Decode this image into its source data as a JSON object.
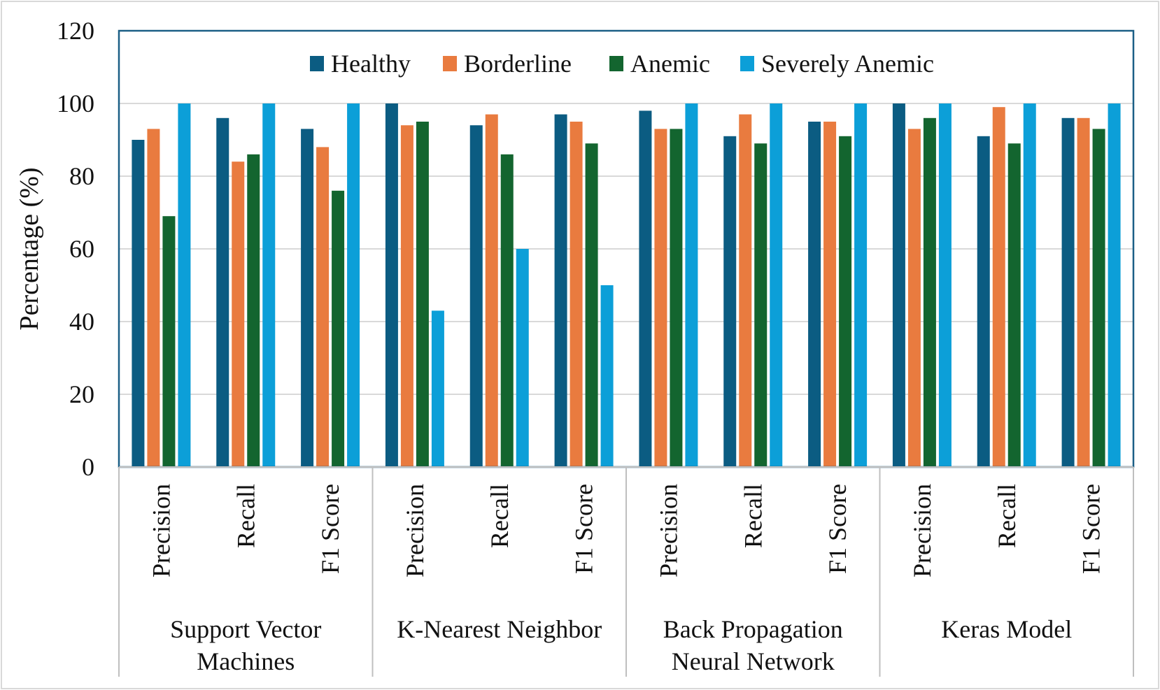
{
  "chart_data": {
    "type": "bar",
    "title": "",
    "xlabel": "",
    "ylabel": "Percentage (%)",
    "ylim": [
      0,
      120
    ],
    "yticks": [
      "0",
      "20",
      "40",
      "60",
      "80",
      "100",
      "120"
    ],
    "grid": true,
    "legend_position": "top-center",
    "groups": [
      {
        "label_lines": [
          "Support Vector",
          "Machines"
        ],
        "categories": [
          "Precision",
          "Recall",
          "F1 Score"
        ]
      },
      {
        "label_lines": [
          "K-Nearest Neighbor"
        ],
        "categories": [
          "Precision",
          "Recall",
          "F1 Score"
        ]
      },
      {
        "label_lines": [
          "Back Propagation",
          "Neural Network"
        ],
        "categories": [
          "Precision",
          "Recall",
          "F1 Score"
        ]
      },
      {
        "label_lines": [
          "Keras Model"
        ],
        "categories": [
          "Precision",
          "Recall",
          "F1 Score"
        ]
      }
    ],
    "series": [
      {
        "name": "Healthy",
        "color": "#0B5C82",
        "values": [
          90,
          96,
          93,
          100,
          94,
          97,
          98,
          91,
          95,
          100,
          91,
          96
        ]
      },
      {
        "name": "Borderline",
        "color": "#E97B3F",
        "values": [
          93,
          84,
          88,
          94,
          97,
          95,
          93,
          97,
          95,
          93,
          99,
          96
        ]
      },
      {
        "name": "Anemic",
        "color": "#13652F",
        "values": [
          69,
          86,
          76,
          95,
          86,
          89,
          93,
          89,
          91,
          96,
          89,
          93
        ]
      },
      {
        "name": "Severely Anemic",
        "color": "#0C9FD8",
        "values": [
          100,
          100,
          100,
          43,
          60,
          50,
          100,
          100,
          100,
          100,
          100,
          100
        ]
      }
    ]
  }
}
